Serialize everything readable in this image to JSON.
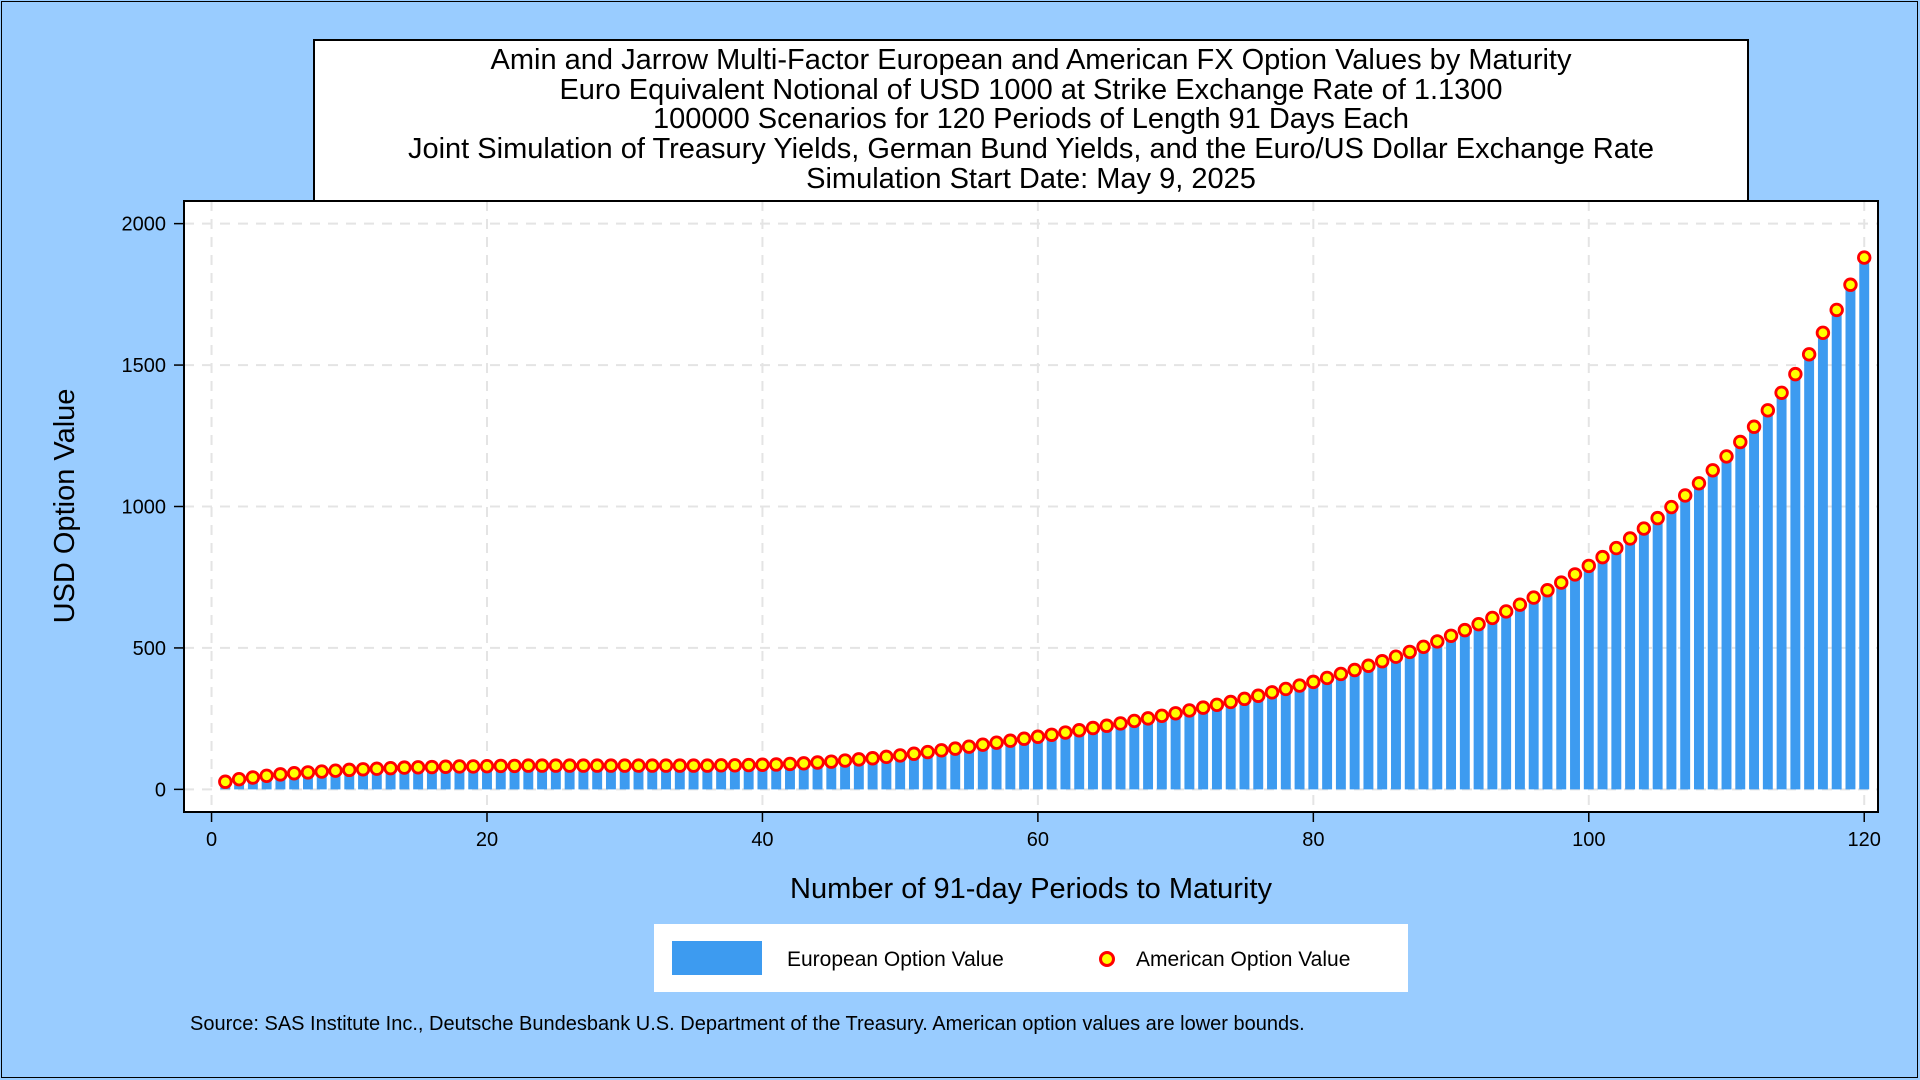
{
  "chart_data": {
    "type": "bar",
    "title_lines": [
      "Amin and Jarrow Multi-Factor European and American FX Option Values by Maturity",
      "Euro Equivalent Notional of USD 1000 at Strike Exchange Rate of  1.1300",
      "100000 Scenarios for 120 Periods of Length 91 Days Each",
      "Joint Simulation of Treasury Yields, German Bund Yields, and the Euro/US Dollar Exchange Rate",
      "Simulation Start Date: May 9, 2025"
    ],
    "xlabel": "Number of 91-day Periods to Maturity",
    "ylabel": "USD Option Value",
    "xlim": [
      -2,
      121
    ],
    "ylim": [
      -80,
      2080
    ],
    "x_ticks": [
      "0",
      "20",
      "40",
      "60",
      "80",
      "100",
      "120"
    ],
    "y_ticks": [
      "0",
      "500",
      "1000",
      "1500",
      "2000"
    ],
    "grid": true,
    "legend_position": "bottom",
    "series": [
      {
        "name": "European Option Value",
        "mark": "bar",
        "color": "#3d9bf0",
        "x_start": 1,
        "values": [
          27,
          36,
          42,
          48,
          53,
          57,
          60,
          63,
          66,
          69,
          71,
          73,
          75,
          77,
          78,
          79,
          80,
          81,
          81,
          82,
          83,
          83,
          84,
          84,
          84,
          84,
          84,
          84,
          84,
          84,
          84,
          84,
          84,
          84,
          84,
          84,
          85,
          85,
          86,
          87,
          88,
          90,
          92,
          95,
          98,
          102,
          106,
          110,
          115,
          120,
          126,
          132,
          138,
          144,
          151,
          158,
          165,
          172,
          179,
          186,
          193,
          201,
          209,
          217,
          225,
          233,
          242,
          251,
          260,
          269,
          279,
          289,
          299,
          309,
          320,
          331,
          343,
          355,
          367,
          380,
          394,
          408,
          422,
          437,
          453,
          469,
          486,
          504,
          523,
          543,
          563,
          584,
          606,
          629,
          653,
          678,
          704,
          731,
          760,
          790,
          821,
          853,
          887,
          922,
          959,
          998,
          1039,
          1082,
          1128,
          1177,
          1228,
          1282,
          1340,
          1402,
          1468,
          1538,
          1614,
          1695,
          1784,
          1880
        ]
      },
      {
        "name": "American Option Value",
        "mark": "circle",
        "fill": "#ffff00",
        "stroke": "#ff0000",
        "x_start": 1,
        "values": [
          27,
          36,
          42,
          48,
          53,
          57,
          60,
          63,
          66,
          69,
          71,
          73,
          75,
          77,
          78,
          79,
          80,
          81,
          81,
          82,
          83,
          83,
          84,
          84,
          84,
          84,
          84,
          84,
          84,
          84,
          84,
          84,
          84,
          84,
          84,
          84,
          85,
          85,
          86,
          87,
          88,
          90,
          92,
          95,
          98,
          102,
          106,
          110,
          115,
          120,
          126,
          132,
          138,
          144,
          151,
          158,
          165,
          172,
          179,
          186,
          193,
          201,
          209,
          217,
          225,
          233,
          242,
          251,
          260,
          269,
          279,
          289,
          299,
          309,
          320,
          331,
          343,
          355,
          367,
          380,
          394,
          408,
          422,
          437,
          453,
          469,
          486,
          504,
          523,
          543,
          563,
          584,
          606,
          629,
          653,
          678,
          704,
          731,
          760,
          790,
          821,
          853,
          887,
          922,
          959,
          998,
          1039,
          1082,
          1128,
          1177,
          1228,
          1282,
          1340,
          1402,
          1468,
          1538,
          1614,
          1695,
          1784,
          1880
        ]
      }
    ],
    "source_note": "Source: SAS Institute Inc., Deutsche Bundesbank U.S. Department of the Treasury. American option values are lower bounds."
  }
}
